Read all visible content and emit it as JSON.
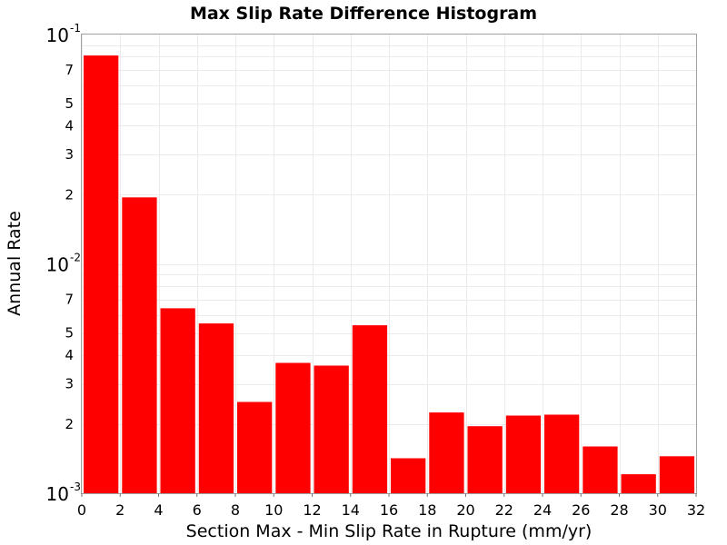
{
  "chart_data": {
    "type": "bar",
    "title": "Max Slip Rate Difference Histogram",
    "xlabel": "Section Max - Min Slip Rate in Rupture (mm/yr)",
    "ylabel": "Annual Rate",
    "xlim": [
      0,
      32
    ],
    "ylim": [
      0.001,
      0.1
    ],
    "yscale": "log",
    "grid": true,
    "bar_color": "#ff0000",
    "bin_width": 2,
    "x_ticks": [
      "0",
      "2",
      "4",
      "6",
      "8",
      "10",
      "12",
      "14",
      "16",
      "18",
      "20",
      "22",
      "24",
      "26",
      "28",
      "30",
      "32"
    ],
    "y_major_ticks": [
      {
        "value": 0.1,
        "base": "10",
        "exp": "-1"
      },
      {
        "value": 0.01,
        "base": "10",
        "exp": "-2"
      },
      {
        "value": 0.001,
        "base": "10",
        "exp": "-3"
      }
    ],
    "y_minor_ticks": [
      {
        "value": 0.07,
        "label": "7"
      },
      {
        "value": 0.05,
        "label": "5"
      },
      {
        "value": 0.04,
        "label": "4"
      },
      {
        "value": 0.03,
        "label": "3"
      },
      {
        "value": 0.02,
        "label": "2"
      },
      {
        "value": 0.007,
        "label": "7"
      },
      {
        "value": 0.005,
        "label": "5"
      },
      {
        "value": 0.004,
        "label": "4"
      },
      {
        "value": 0.003,
        "label": "3"
      },
      {
        "value": 0.002,
        "label": "2"
      }
    ],
    "bins": [
      {
        "x": 1,
        "value": 0.081
      },
      {
        "x": 3,
        "value": 0.0195
      },
      {
        "x": 5,
        "value": 0.0064
      },
      {
        "x": 7,
        "value": 0.0055
      },
      {
        "x": 9,
        "value": 0.0025
      },
      {
        "x": 11,
        "value": 0.0037
      },
      {
        "x": 13,
        "value": 0.0036
      },
      {
        "x": 15,
        "value": 0.0054
      },
      {
        "x": 17,
        "value": 0.00142
      },
      {
        "x": 19,
        "value": 0.00225
      },
      {
        "x": 21,
        "value": 0.00196
      },
      {
        "x": 23,
        "value": 0.00218
      },
      {
        "x": 25,
        "value": 0.0022
      },
      {
        "x": 27,
        "value": 0.0016
      },
      {
        "x": 29,
        "value": 0.00121
      },
      {
        "x": 31,
        "value": 0.00145
      }
    ]
  }
}
